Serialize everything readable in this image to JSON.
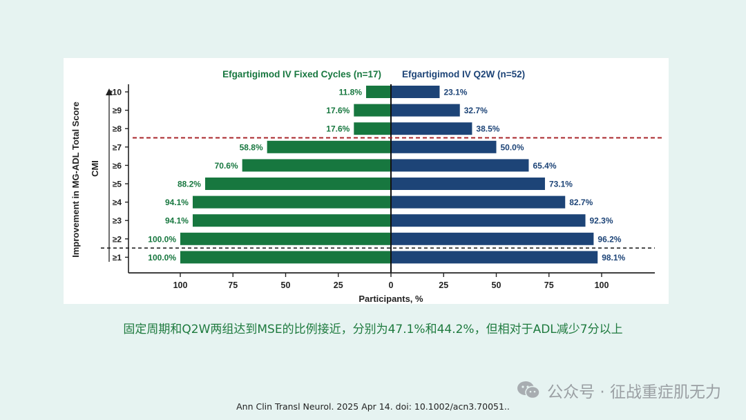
{
  "chart_data": {
    "type": "bar",
    "orientation": "horizontal-butterfly",
    "ylabel": "Improvement in MG-ADL Total Score",
    "ylabel2": "CMI",
    "xlabel": "Participants, %",
    "categories": [
      "≥10",
      "≥9",
      "≥8",
      "≥7",
      "≥6",
      "≥5",
      "≥4",
      "≥3",
      "≥2",
      "≥1"
    ],
    "xticks": [
      "100",
      "75",
      "50",
      "25",
      "0",
      "25",
      "50",
      "75",
      "100"
    ],
    "series": [
      {
        "name": "Efgartigimod IV Fixed Cycles (n=17)",
        "side": "left",
        "color": "#17773f",
        "values": [
          11.8,
          17.6,
          17.6,
          58.8,
          70.6,
          88.2,
          94.1,
          94.1,
          100.0,
          100.0
        ],
        "labels": [
          "11.8%",
          "17.6%",
          "17.6%",
          "58.8%",
          "70.6%",
          "88.2%",
          "94.1%",
          "94.1%",
          "100.0%",
          "100.0%"
        ]
      },
      {
        "name": "Efgartigimod IV Q2W (n=52)",
        "side": "right",
        "color": "#1d4477",
        "values": [
          23.1,
          32.7,
          38.5,
          50.0,
          65.4,
          73.1,
          82.7,
          92.3,
          96.2,
          98.1
        ],
        "labels": [
          "23.1%",
          "32.7%",
          "38.5%",
          "50.0%",
          "65.4%",
          "73.1%",
          "82.7%",
          "92.3%",
          "96.2%",
          "98.1%"
        ]
      }
    ],
    "xlim": [
      0,
      120
    ],
    "reference_lines": [
      {
        "between": [
          "≥8",
          "≥7"
        ],
        "style": "dashed",
        "color": "#a8262a"
      },
      {
        "between": [
          "≥2",
          "≥1"
        ],
        "style": "dashed",
        "color": "#222222"
      }
    ]
  },
  "caption": "固定周期和Q2W两组达到MSE的比例接近，分别为47.1%和44.2%，但相对于ADL减少7分以上",
  "citation": "Ann Clin Transl Neurol. 2025 Apr 14. doi: 10.1002/acn3.70051..",
  "watermark": {
    "text": "公众号 · 征战重症肌无力",
    "icon": "wechat-icon"
  }
}
